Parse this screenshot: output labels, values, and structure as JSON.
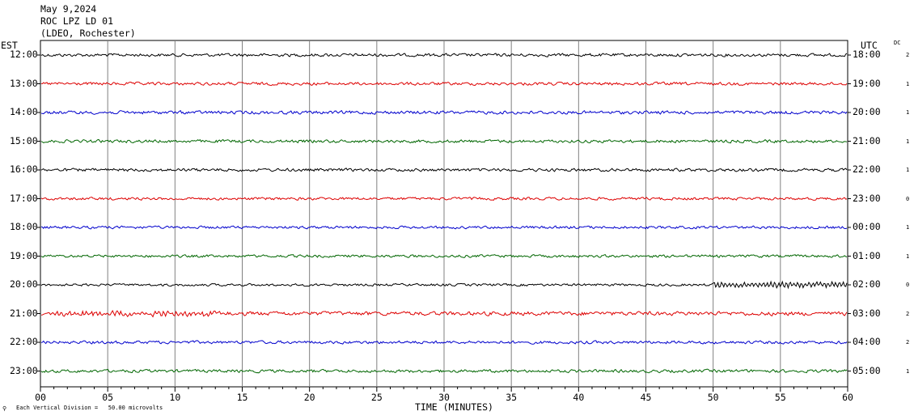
{
  "header": {
    "line1": "May 9,2024",
    "line2": "ROC LPZ LD 01",
    "line3": "(LDEO, Rochester)"
  },
  "labels": {
    "left_zone": "EST",
    "right_zone": "UTC",
    "dc_header": "DC",
    "x_axis": "TIME (MINUTES)",
    "scale_note": "Each Vertical Division =   50.00 microvolts"
  },
  "chart_data": {
    "type": "line",
    "title": "",
    "xlabel": "TIME (MINUTES)",
    "ylabel": "",
    "xlim": [
      0,
      60
    ],
    "x_ticks": [
      "00",
      "05",
      "10",
      "15",
      "20",
      "25",
      "30",
      "35",
      "40",
      "45",
      "50",
      "55",
      "60"
    ],
    "grid": true,
    "colors": [
      "#000000",
      "#dd0000",
      "#0000cc",
      "#006600"
    ],
    "rows": [
      {
        "est": "12:00",
        "utc": "18:00",
        "dc": "2",
        "color": "#000000",
        "amplitude": 1.0
      },
      {
        "est": "13:00",
        "utc": "19:00",
        "dc": "1",
        "color": "#dd0000",
        "amplitude": 1.0
      },
      {
        "est": "14:00",
        "utc": "20:00",
        "dc": "1",
        "color": "#0000cc",
        "amplitude": 1.1
      },
      {
        "est": "15:00",
        "utc": "21:00",
        "dc": "1",
        "color": "#006600",
        "amplitude": 1.0
      },
      {
        "est": "16:00",
        "utc": "22:00",
        "dc": "1",
        "color": "#000000",
        "amplitude": 1.0
      },
      {
        "est": "17:00",
        "utc": "23:00",
        "dc": "0",
        "color": "#dd0000",
        "amplitude": 0.9
      },
      {
        "est": "18:00",
        "utc": "00:00",
        "dc": "1",
        "color": "#0000cc",
        "amplitude": 0.9
      },
      {
        "est": "19:00",
        "utc": "01:00",
        "dc": "1",
        "color": "#006600",
        "amplitude": 0.9
      },
      {
        "est": "20:00",
        "utc": "02:00",
        "dc": "0",
        "color": "#000000",
        "amplitude": 0.8
      },
      {
        "est": "21:00",
        "utc": "03:00",
        "dc": "2",
        "color": "#dd0000",
        "amplitude": 1.3
      },
      {
        "est": "22:00",
        "utc": "04:00",
        "dc": "2",
        "color": "#0000cc",
        "amplitude": 1.0
      },
      {
        "est": "23:00",
        "utc": "05:00",
        "dc": "1",
        "color": "#006600",
        "amplitude": 1.0
      }
    ]
  }
}
